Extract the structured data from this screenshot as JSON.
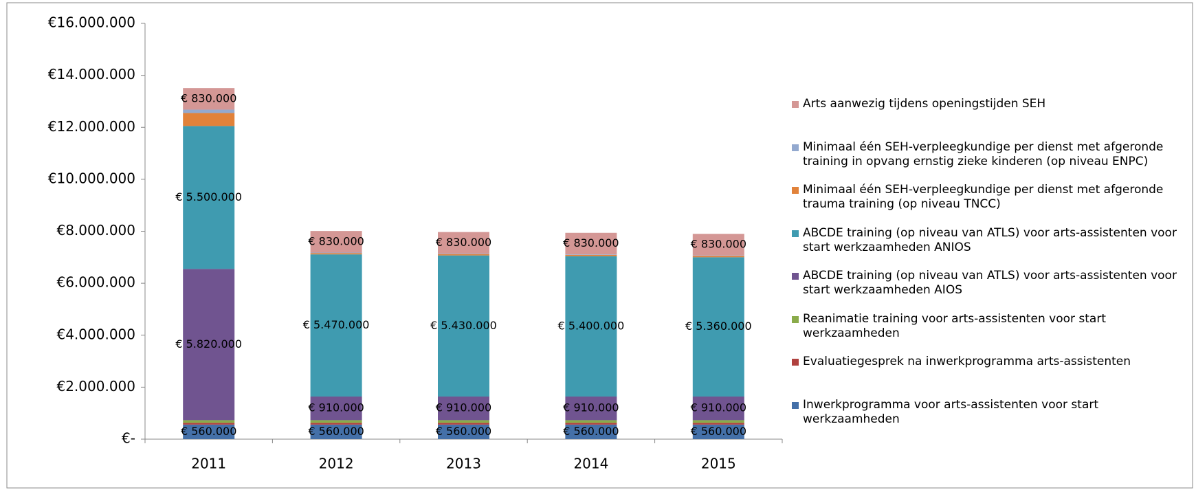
{
  "chart_data": {
    "type": "stacked_bar",
    "categories": [
      "2011",
      "2012",
      "2013",
      "2014",
      "2015"
    ],
    "series": [
      {
        "name": "Inwerkprogramma voor arts-assistenten voor start werkzaamheden",
        "color": "#4470a8",
        "values": [
          560000,
          560000,
          560000,
          560000,
          560000
        ],
        "value_labels": [
          "€ 560.000",
          "€ 560.000",
          "€ 560.000",
          "€ 560.000",
          "€ 560.000"
        ]
      },
      {
        "name": "Evaluatiegesprek na inwerkprogramma arts-assistenten",
        "color": "#b0413e",
        "values": [
          70000,
          70000,
          70000,
          70000,
          70000
        ]
      },
      {
        "name": "Reanimatie training voor arts-assistenten voor start werkzaamheden",
        "color": "#8aab4a",
        "values": [
          100000,
          100000,
          100000,
          100000,
          100000
        ]
      },
      {
        "name": "ABCDE training (op niveau van ATLS) voor arts-assistenten voor start werkzaamheden AIOS",
        "color": "#705490",
        "values": [
          5820000,
          910000,
          910000,
          910000,
          910000
        ],
        "value_labels": [
          "€ 5.820.000",
          "€ 910.000",
          "€ 910.000",
          "€ 910.000",
          "€ 910.000"
        ]
      },
      {
        "name": "ABCDE training (op niveau van ATLS) voor arts-assistenten voor start werkzaamheden ANIOS",
        "color": "#3f9bb0",
        "values": [
          5500000,
          5470000,
          5430000,
          5400000,
          5360000
        ],
        "value_labels": [
          "€ 5.500.000",
          "€ 5.470.000",
          "€ 5.430.000",
          "€ 5.400.000",
          "€ 5.360.000"
        ]
      },
      {
        "name": "Minimaal één SEH-verpleegkundige per dienst met afgeronde trauma training (op niveau TNCC)",
        "color": "#e1823a",
        "values": [
          500000,
          50000,
          50000,
          50000,
          50000
        ]
      },
      {
        "name": "Minimaal één SEH-verpleegkundige per dienst met afgeronde training in opvang ernstig zieke kinderen (op niveau ENPC)",
        "color": "#93a9cf",
        "values": [
          130000,
          20000,
          20000,
          20000,
          20000
        ]
      },
      {
        "name": "Arts aanwezig tijdens openingstijden SEH",
        "color": "#d49795",
        "values": [
          830000,
          830000,
          830000,
          830000,
          830000
        ],
        "value_labels": [
          "€ 830.000",
          "€ 830.000",
          "€ 830.000",
          "€ 830.000",
          "€ 830.000"
        ]
      }
    ],
    "ylim": [
      0,
      16000000
    ],
    "yticks": [
      {
        "value": 0,
        "label": "€-"
      },
      {
        "value": 2000000,
        "label": "€2.000.000"
      },
      {
        "value": 4000000,
        "label": "€4.000.000"
      },
      {
        "value": 6000000,
        "label": "€6.000.000"
      },
      {
        "value": 8000000,
        "label": "€8.000.000"
      },
      {
        "value": 10000000,
        "label": "€10.000.000"
      },
      {
        "value": 12000000,
        "label": "€12.000.000"
      },
      {
        "value": 14000000,
        "label": "€14.000.000"
      },
      {
        "value": 16000000,
        "label": "€16.000.000"
      }
    ],
    "legend": "right"
  }
}
